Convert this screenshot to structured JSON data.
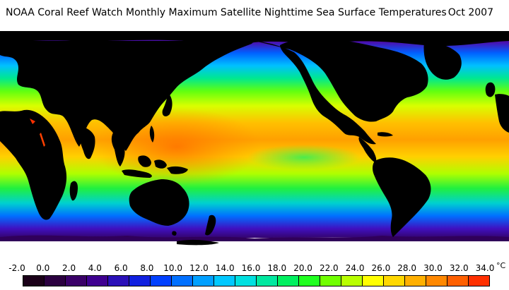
{
  "title": {
    "main": "NOAA Coral Reef Watch Monthly Maximum Satellite Nighttime Sea Surface Temperatures",
    "date": "Oct 2007"
  },
  "legend": {
    "labels": [
      "-2.0",
      "0.0",
      "2.0",
      "4.0",
      "6.0",
      "8.0",
      "10.0",
      "12.0",
      "14.0",
      "16.0",
      "18.0",
      "20.0",
      "22.0",
      "24.0",
      "26.0",
      "28.0",
      "30.0",
      "32.0",
      "34.0"
    ],
    "unit": "°C",
    "colors": [
      "#1a0018",
      "#2b0040",
      "#3a0068",
      "#3f0090",
      "#2a10b8",
      "#1020e0",
      "#0040ff",
      "#0070ff",
      "#00a0ff",
      "#00c8ff",
      "#00e0e0",
      "#00e8a0",
      "#00f060",
      "#20ff20",
      "#70ff00",
      "#b8ff00",
      "#ffff00",
      "#ffd800",
      "#ffb000",
      "#ff8800",
      "#ff6000",
      "#ff3000"
    ]
  },
  "colors": {
    "land": "#000000",
    "sea_ice": "#ffffff",
    "background": "#ffffff"
  }
}
